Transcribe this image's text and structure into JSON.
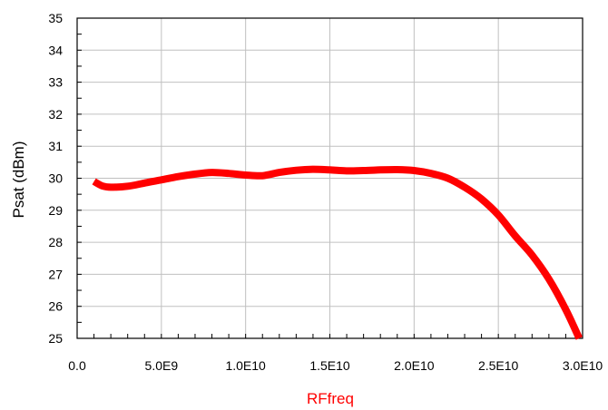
{
  "chart_data": {
    "type": "line",
    "xlabel": "RFfreq",
    "ylabel": "Psat (dBm)",
    "xlim": [
      0,
      30000000000
    ],
    "ylim": [
      25,
      35
    ],
    "grid": true,
    "x_ticks": [
      0,
      5000000000,
      10000000000,
      15000000000,
      20000000000,
      25000000000,
      30000000000
    ],
    "x_tick_labels": [
      "0.0",
      "5.0E9",
      "1.0E10",
      "1.5E10",
      "2.0E10",
      "2.5E10",
      "3.0E10"
    ],
    "y_ticks": [
      25,
      26,
      27,
      28,
      29,
      30,
      31,
      32,
      33,
      34,
      35
    ],
    "y_tick_labels": [
      "25",
      "26",
      "27",
      "28",
      "29",
      "30",
      "31",
      "32",
      "33",
      "34",
      "35"
    ],
    "colors": {
      "series": "#ff0000",
      "xlabel": "#ff0000",
      "ylabel": "#000000",
      "grid": "#c0c0c0"
    },
    "series": [
      {
        "x": [
          1000000000,
          1500000000,
          2000000000,
          3000000000,
          4000000000,
          5000000000,
          6000000000,
          7000000000,
          8000000000,
          9000000000,
          10000000000,
          11000000000,
          12000000000,
          13000000000,
          14000000000,
          15000000000,
          16000000000,
          17000000000,
          18000000000,
          19000000000,
          20000000000,
          21000000000,
          22000000000,
          23000000000,
          24000000000,
          25000000000,
          26000000000,
          27000000000,
          28000000000,
          29000000000,
          29800000000
        ],
        "y": [
          29.9,
          29.76,
          29.72,
          29.75,
          29.85,
          29.95,
          30.05,
          30.13,
          30.18,
          30.15,
          30.1,
          30.08,
          30.18,
          30.25,
          30.28,
          30.26,
          30.23,
          30.24,
          30.26,
          30.27,
          30.24,
          30.15,
          30.0,
          29.72,
          29.35,
          28.85,
          28.2,
          27.6,
          26.85,
          25.9,
          25.0
        ]
      }
    ]
  }
}
